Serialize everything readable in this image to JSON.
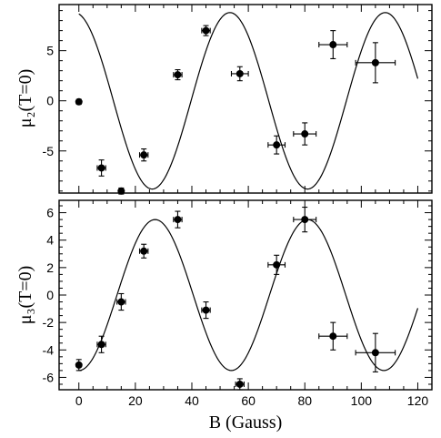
{
  "chart_data": [
    {
      "type": "scatter",
      "ylabel": "μ₂(T=0)",
      "xlim": [
        -7,
        125
      ],
      "ylim": [
        -9.2,
        9.6
      ],
      "xticks": [
        0,
        20,
        40,
        60,
        80,
        100,
        120
      ],
      "yticks": [
        -5,
        0,
        5
      ],
      "ytick_labels": [
        "-5",
        "0",
        "5"
      ],
      "curve": {
        "amplitude": 8.8,
        "period": 55,
        "phase_deg": 100
      },
      "points": [
        {
          "x": 0,
          "y": -0.1,
          "xerr": 0,
          "yerr": 0.25
        },
        {
          "x": 8,
          "y": -6.7,
          "xerr": 1.5,
          "yerr": 0.8
        },
        {
          "x": 15,
          "y": -9.0,
          "xerr": 0,
          "yerr": 0.3
        },
        {
          "x": 23,
          "y": -5.4,
          "xerr": 1.5,
          "yerr": 0.6
        },
        {
          "x": 35,
          "y": 2.6,
          "xerr": 1.5,
          "yerr": 0.5
        },
        {
          "x": 45,
          "y": 7.0,
          "xerr": 1.5,
          "yerr": 0.5
        },
        {
          "x": 57,
          "y": 2.7,
          "xerr": 3.0,
          "yerr": 0.7
        },
        {
          "x": 70,
          "y": -4.4,
          "xerr": 3.0,
          "yerr": 0.9
        },
        {
          "x": 80,
          "y": -3.3,
          "xerr": 4.0,
          "yerr": 1.1
        },
        {
          "x": 90,
          "y": 5.6,
          "xerr": 5.0,
          "yerr": 1.4
        },
        {
          "x": 105,
          "y": 3.8,
          "xerr": 7.0,
          "yerr": 2.0
        }
      ]
    },
    {
      "type": "scatter",
      "xlabel": "B (Gauss)",
      "ylabel": "μ₃(T=0)",
      "xlim": [
        -7,
        125
      ],
      "ylim": [
        -6.9,
        6.9
      ],
      "xticks": [
        0,
        20,
        40,
        60,
        80,
        100,
        120
      ],
      "xtick_labels": [
        "0",
        "20",
        "40",
        "60",
        "80",
        "100",
        "120"
      ],
      "yticks": [
        -6,
        -4,
        -2,
        0,
        2,
        4,
        6
      ],
      "ytick_labels": [
        "-6",
        "-4",
        "-2",
        "0",
        "2",
        "4",
        "6"
      ],
      "curve": {
        "amplitude": 5.5,
        "period": 54,
        "phase_deg": -90
      },
      "points": [
        {
          "x": 0,
          "y": -5.1,
          "xerr": 0,
          "yerr": 0.4
        },
        {
          "x": 8,
          "y": -3.6,
          "xerr": 1.5,
          "yerr": 0.6
        },
        {
          "x": 15,
          "y": -0.5,
          "xerr": 1.5,
          "yerr": 0.6
        },
        {
          "x": 23,
          "y": 3.2,
          "xerr": 1.5,
          "yerr": 0.5
        },
        {
          "x": 35,
          "y": 5.5,
          "xerr": 1.5,
          "yerr": 0.6
        },
        {
          "x": 45,
          "y": -1.1,
          "xerr": 1.5,
          "yerr": 0.6
        },
        {
          "x": 57,
          "y": -6.5,
          "xerr": 1.5,
          "yerr": 0.4
        },
        {
          "x": 70,
          "y": 2.2,
          "xerr": 3.0,
          "yerr": 0.7
        },
        {
          "x": 80,
          "y": 5.5,
          "xerr": 4.0,
          "yerr": 0.9
        },
        {
          "x": 90,
          "y": -3.0,
          "xerr": 5.0,
          "yerr": 1.0
        },
        {
          "x": 105,
          "y": -4.2,
          "xerr": 7.0,
          "yerr": 1.4
        }
      ]
    }
  ]
}
